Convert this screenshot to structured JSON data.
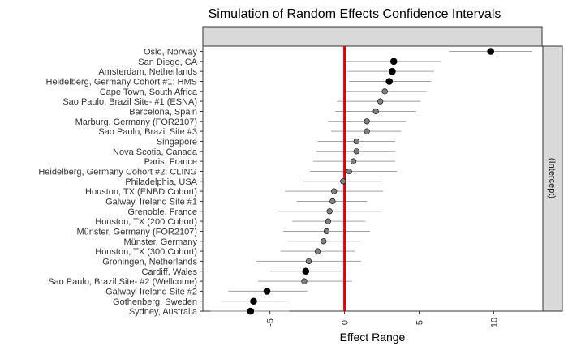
{
  "chart_data": {
    "type": "scatter",
    "title": "Simulation of Random Effects Confidence Intervals",
    "xlabel": "Effect Range",
    "ylabel": "",
    "strip_label": "(Intercept)",
    "xlim": [
      -9.5,
      13.3
    ],
    "xticks": [
      -5,
      0,
      5,
      10
    ],
    "xtick_labels": [
      "-5",
      "0",
      "5",
      "10"
    ],
    "reference_line": {
      "x": 0,
      "color": "#e00000"
    },
    "grid": false,
    "colors": {
      "significant": "#000000",
      "non_significant": "#808080",
      "interval": "#a0a0a0"
    },
    "points": [
      {
        "label": "Oslo, Norway",
        "estimate": 9.8,
        "lower": 7.0,
        "upper": 12.6,
        "significant": true
      },
      {
        "label": "San Diego, CA",
        "estimate": 3.3,
        "lower": 0.0,
        "upper": 6.5,
        "significant": true
      },
      {
        "label": "Amsterdam, Netherlands",
        "estimate": 3.2,
        "lower": 0.2,
        "upper": 6.0,
        "significant": true
      },
      {
        "label": "Heidelberg, Germany Cohort #1: HMS",
        "estimate": 3.0,
        "lower": 0.3,
        "upper": 5.8,
        "significant": true
      },
      {
        "label": "Cape Town, South Africa",
        "estimate": 2.7,
        "lower": 0.0,
        "upper": 5.5,
        "significant": false
      },
      {
        "label": "Sao Paulo, Brazil Site- #1 (ESNA)",
        "estimate": 2.4,
        "lower": -0.5,
        "upper": 5.1,
        "significant": false
      },
      {
        "label": "Barcelona, Spain",
        "estimate": 2.1,
        "lower": -0.6,
        "upper": 4.8,
        "significant": false
      },
      {
        "label": "Marburg, Germany (FOR2107)",
        "estimate": 1.5,
        "lower": -1.1,
        "upper": 4.1,
        "significant": false
      },
      {
        "label": "Sao Paulo, Brazil Site #3",
        "estimate": 1.5,
        "lower": -0.9,
        "upper": 3.8,
        "significant": false
      },
      {
        "label": "Singapore",
        "estimate": 0.8,
        "lower": -1.8,
        "upper": 3.4,
        "significant": false
      },
      {
        "label": "Nova Scotia, Canada",
        "estimate": 0.8,
        "lower": -1.9,
        "upper": 3.4,
        "significant": false
      },
      {
        "label": "Paris, France",
        "estimate": 0.6,
        "lower": -2.1,
        "upper": 3.4,
        "significant": false
      },
      {
        "label": "Heidelberg, Germany Cohort #2: CLING",
        "estimate": 0.3,
        "lower": -2.3,
        "upper": 3.5,
        "significant": false
      },
      {
        "label": "Philadelphia, USA",
        "estimate": -0.1,
        "lower": -2.8,
        "upper": 2.5,
        "significant": false
      },
      {
        "label": "Houston, TX (ENBD Cohort)",
        "estimate": -0.7,
        "lower": -4.0,
        "upper": 2.6,
        "significant": false
      },
      {
        "label": "Galway, Ireland Site #1",
        "estimate": -0.8,
        "lower": -3.2,
        "upper": 1.5,
        "significant": false
      },
      {
        "label": "Grenoble, France",
        "estimate": -1.0,
        "lower": -4.5,
        "upper": 2.5,
        "significant": false
      },
      {
        "label": "Houston, TX (200 Cohort)",
        "estimate": -1.1,
        "lower": -3.5,
        "upper": 1.4,
        "significant": false
      },
      {
        "label": "Münster, Germany (FOR2107)",
        "estimate": -1.2,
        "lower": -4.1,
        "upper": 1.7,
        "significant": false
      },
      {
        "label": "Münster, Germany",
        "estimate": -1.4,
        "lower": -3.8,
        "upper": 1.1,
        "significant": false
      },
      {
        "label": "Houston, TX (300 Cohort)",
        "estimate": -1.8,
        "lower": -4.3,
        "upper": 0.7,
        "significant": false
      },
      {
        "label": "Groningen, Netherlands",
        "estimate": -2.4,
        "lower": -5.9,
        "upper": 1.1,
        "significant": false
      },
      {
        "label": "Cardiff, Wales",
        "estimate": -2.6,
        "lower": -5.0,
        "upper": -0.2,
        "significant": true
      },
      {
        "label": "Sao Paulo, Brazil Site- #2 (Wellcome)",
        "estimate": -2.7,
        "lower": -5.8,
        "upper": 0.5,
        "significant": false
      },
      {
        "label": "Galway, Ireland Site #2",
        "estimate": -5.2,
        "lower": -7.8,
        "upper": -2.5,
        "significant": true
      },
      {
        "label": "Gothenberg, Sweden",
        "estimate": -6.1,
        "lower": -8.3,
        "upper": -3.9,
        "significant": true
      },
      {
        "label": "Sydney, Australia",
        "estimate": -6.3,
        "lower": -9.0,
        "upper": -3.7,
        "significant": true
      }
    ]
  }
}
